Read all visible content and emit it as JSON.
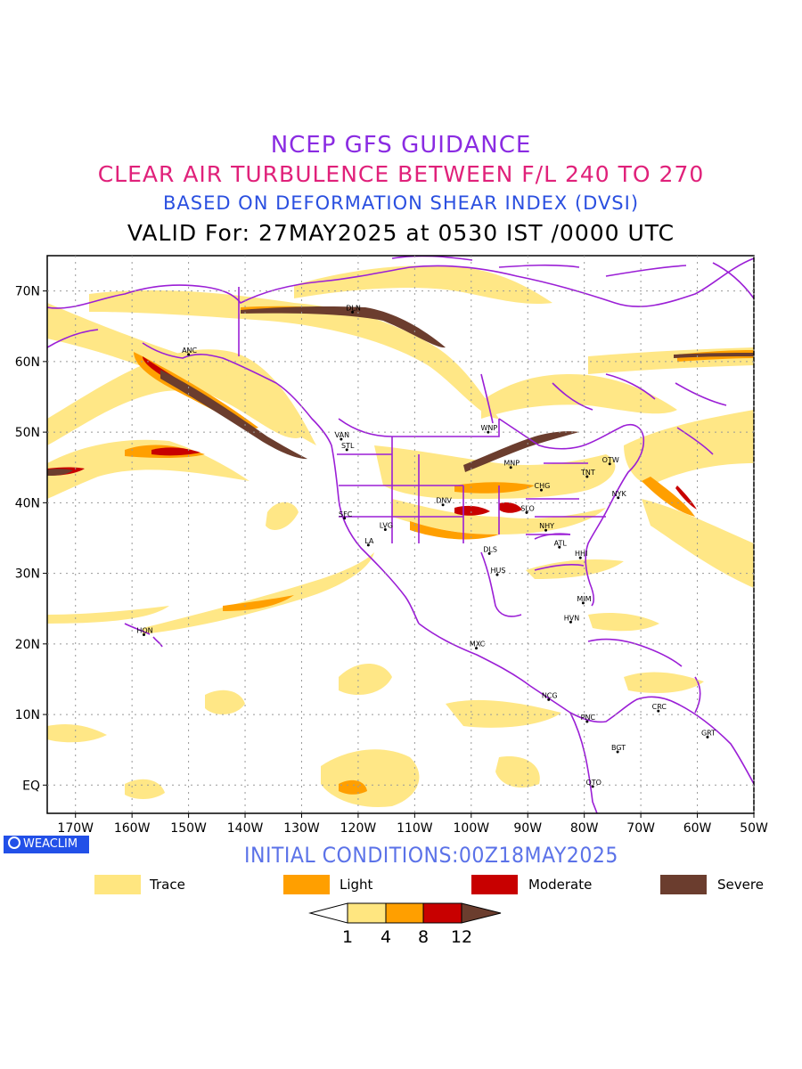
{
  "titles": {
    "line1": "NCEP GFS GUIDANCE",
    "line2": "CLEAR AIR TURBULENCE BETWEEN F/L 240 TO 270",
    "line3": "BASED ON DEFORMATION SHEAR INDEX (DVSI)",
    "line4": "VALID For: 27MAY2025 at 0530 IST /0000 UTC"
  },
  "map": {
    "lat_labels": [
      "70N",
      "60N",
      "50N",
      "40N",
      "30N",
      "20N",
      "10N",
      "EQ"
    ],
    "lon_labels": [
      "170W",
      "160W",
      "150W",
      "140W",
      "130W",
      "120W",
      "110W",
      "100W",
      "90W",
      "80W",
      "70W",
      "60W",
      "50W"
    ],
    "stations": [
      {
        "name": "DLN",
        "lon": -121,
        "lat": 67
      },
      {
        "name": "ANC",
        "lon": -150,
        "lat": 61
      },
      {
        "name": "VAN",
        "lon": -123,
        "lat": 49
      },
      {
        "name": "STL",
        "lon": -122,
        "lat": 47.5
      },
      {
        "name": "WNP",
        "lon": -97,
        "lat": 50
      },
      {
        "name": "OTW",
        "lon": -75.5,
        "lat": 45.5
      },
      {
        "name": "TNT",
        "lon": -79.5,
        "lat": 43.7
      },
      {
        "name": "MNP",
        "lon": -93,
        "lat": 45
      },
      {
        "name": "CHG",
        "lon": -87.6,
        "lat": 41.8
      },
      {
        "name": "NYK",
        "lon": -74,
        "lat": 40.7
      },
      {
        "name": "DNV",
        "lon": -105,
        "lat": 39.7
      },
      {
        "name": "SLO",
        "lon": -90.2,
        "lat": 38.6
      },
      {
        "name": "SFC",
        "lon": -122.4,
        "lat": 37.8
      },
      {
        "name": "LVG",
        "lon": -115.2,
        "lat": 36.2
      },
      {
        "name": "NHY",
        "lon": -86.8,
        "lat": 36.1
      },
      {
        "name": "LA",
        "lon": -118.2,
        "lat": 34
      },
      {
        "name": "ATL",
        "lon": -84.4,
        "lat": 33.7
      },
      {
        "name": "DLS",
        "lon": -96.8,
        "lat": 32.8
      },
      {
        "name": "HHI",
        "lon": -80.7,
        "lat": 32.2
      },
      {
        "name": "HUS",
        "lon": -95.4,
        "lat": 29.8
      },
      {
        "name": "MIM",
        "lon": -80.2,
        "lat": 25.8
      },
      {
        "name": "HVN",
        "lon": -82.4,
        "lat": 23.1
      },
      {
        "name": "HON",
        "lon": -157.9,
        "lat": 21.3
      },
      {
        "name": "MXC",
        "lon": -99.1,
        "lat": 19.4
      },
      {
        "name": "NCG",
        "lon": -86.3,
        "lat": 12.1
      },
      {
        "name": "CRC",
        "lon": -66.9,
        "lat": 10.5
      },
      {
        "name": "PNC",
        "lon": -79.5,
        "lat": 9
      },
      {
        "name": "GRT",
        "lon": -58.2,
        "lat": 6.8
      },
      {
        "name": "BGT",
        "lon": -74.1,
        "lat": 4.7
      },
      {
        "name": "QTO",
        "lon": -78.5,
        "lat": -0.2
      }
    ]
  },
  "watermark": "WEACLIM",
  "initial_conditions": "INITIAL CONDITIONS:00Z18MAY2025",
  "legend": [
    {
      "label": "Trace",
      "color": "#ffe680"
    },
    {
      "label": "Light",
      "color": "#ff9f00"
    },
    {
      "label": "Moderate",
      "color": "#c80000"
    },
    {
      "label": "Severe",
      "color": "#6b3d2e"
    }
  ],
  "colorbar": {
    "ticks": [
      "1",
      "4",
      "8",
      "12"
    ],
    "colors": [
      "#ffffff",
      "#ffe680",
      "#ff9f00",
      "#c80000",
      "#6b3d2e"
    ]
  }
}
